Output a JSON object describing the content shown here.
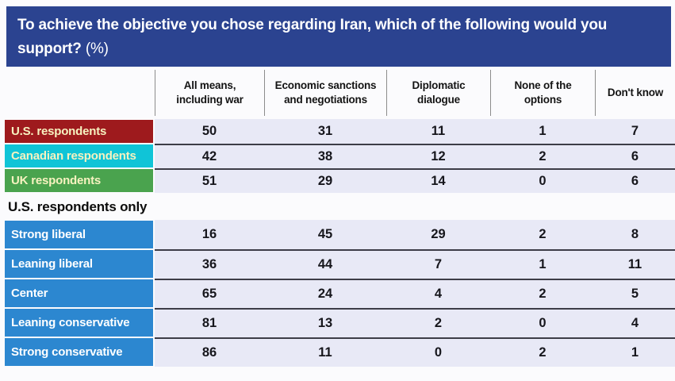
{
  "title": {
    "text": "To achieve the objective you chose regarding Iran, which of the following would you support?",
    "suffix": "(%)"
  },
  "colors": {
    "title_bar": "#2B4390",
    "us_row": "#9E1A1D",
    "canada_row": "#10C4D7",
    "uk_row": "#4AA34E",
    "political_rows": "#2C87D0",
    "cell_background": "#E8E9F6",
    "country_label_text": "#F7F2C0",
    "political_label_text": "#FFFFFF",
    "row_separator": "#3D3D47"
  },
  "chart_data": {
    "type": "table",
    "title": "To achieve the objective you chose regarding Iran, which of the following would you support? (%)",
    "columns": [
      "All means, including war",
      "Economic sanctions and negotiations",
      "Diplomatic dialogue",
      "None of the options",
      "Don't know"
    ],
    "groups": [
      {
        "name": "",
        "rows": [
          {
            "label": "U.S. respondents",
            "color": "#9E1A1D",
            "text_color": "#F7F2C0",
            "values": [
              50,
              31,
              11,
              1,
              7
            ]
          },
          {
            "label": "Canadian respondents",
            "color": "#10C4D7",
            "text_color": "#F7F2C0",
            "values": [
              42,
              38,
              12,
              2,
              6
            ]
          },
          {
            "label": "UK respondents",
            "color": "#4AA34E",
            "text_color": "#F7F2C0",
            "values": [
              51,
              29,
              14,
              0,
              6
            ]
          }
        ]
      },
      {
        "name": "U.S. respondents only",
        "rows": [
          {
            "label": "Strong liberal",
            "color": "#2C87D0",
            "text_color": "#FFFFFF",
            "values": [
              16,
              45,
              29,
              2,
              8
            ]
          },
          {
            "label": "Leaning liberal",
            "color": "#2C87D0",
            "text_color": "#FFFFFF",
            "values": [
              36,
              44,
              7,
              1,
              11
            ]
          },
          {
            "label": "Center",
            "color": "#2C87D0",
            "text_color": "#FFFFFF",
            "values": [
              65,
              24,
              4,
              2,
              5
            ]
          },
          {
            "label": "Leaning conservative",
            "color": "#2C87D0",
            "text_color": "#FFFFFF",
            "values": [
              81,
              13,
              2,
              0,
              4
            ]
          },
          {
            "label": "Strong conservative",
            "color": "#2C87D0",
            "text_color": "#FFFFFF",
            "values": [
              86,
              11,
              0,
              2,
              1
            ]
          }
        ]
      }
    ]
  }
}
